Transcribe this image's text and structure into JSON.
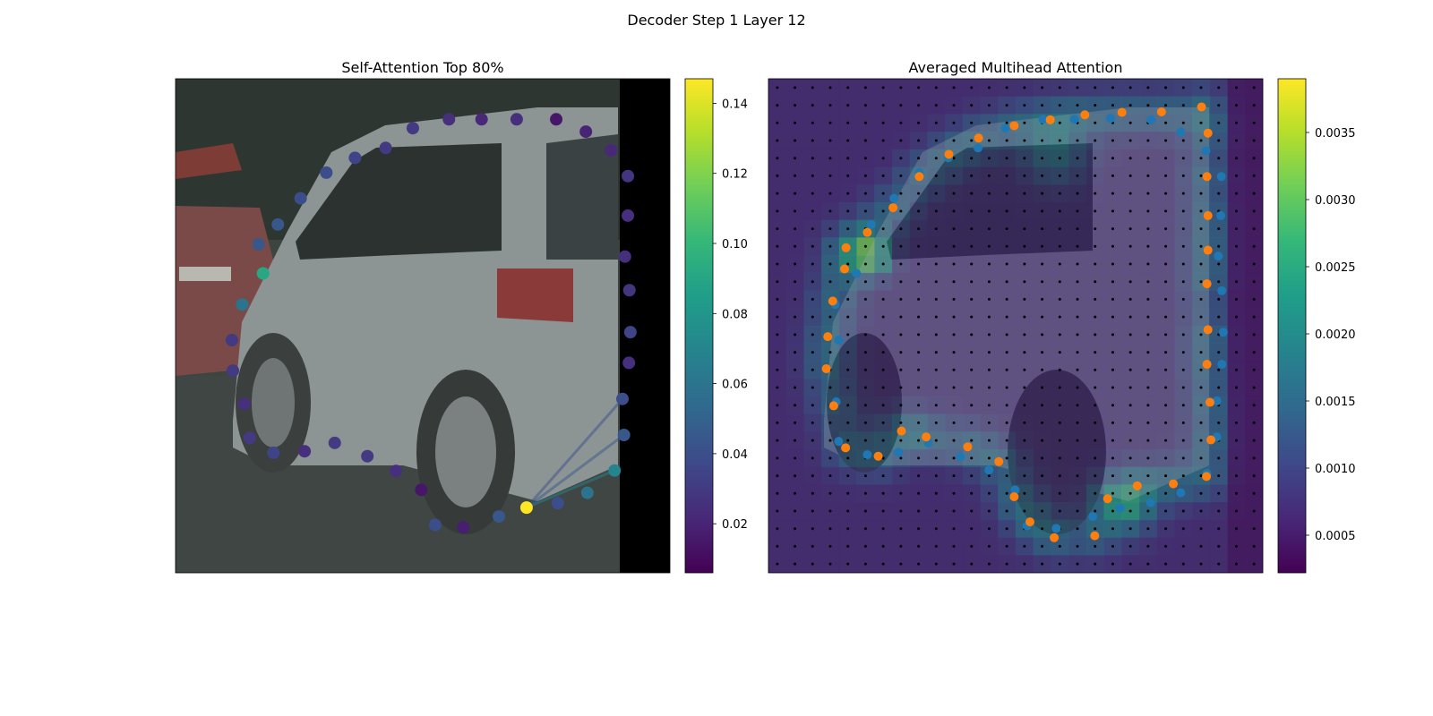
{
  "figure": {
    "title": "Decoder Step 1 Layer 12"
  },
  "colors": {
    "viridis": [
      "#440154",
      "#482878",
      "#3e4989",
      "#31688e",
      "#26828e",
      "#1f9e89",
      "#35b779",
      "#6ece58",
      "#b5de2b",
      "#fde725"
    ],
    "orange": "#ff7f0e",
    "blue": "#1f77b4"
  },
  "chart_data": [
    {
      "type": "scatter",
      "title": "Self-Attention Top 80%",
      "description_of_background": "photo of a silver minivan",
      "colorbar": {
        "range": [
          0.006,
          0.147
        ],
        "ticks": [
          "0.02",
          "0.04",
          "0.06",
          "0.08",
          "0.10",
          "0.12",
          "0.14"
        ],
        "tick_values": [
          0.02,
          0.04,
          0.06,
          0.08,
          0.1,
          0.12,
          0.14
        ]
      },
      "query_index": 0,
      "points": [
        {
          "x": 0.71,
          "y": 0.868,
          "v": 0.147
        },
        {
          "x": 0.773,
          "y": 0.859,
          "v": 0.04
        },
        {
          "x": 0.833,
          "y": 0.838,
          "v": 0.06
        },
        {
          "x": 0.888,
          "y": 0.793,
          "v": 0.07
        },
        {
          "x": 0.907,
          "y": 0.721,
          "v": 0.045
        },
        {
          "x": 0.904,
          "y": 0.648,
          "v": 0.04
        },
        {
          "x": 0.917,
          "y": 0.575,
          "v": 0.025
        },
        {
          "x": 0.92,
          "y": 0.513,
          "v": 0.035
        },
        {
          "x": 0.918,
          "y": 0.428,
          "v": 0.028
        },
        {
          "x": 0.909,
          "y": 0.36,
          "v": 0.025
        },
        {
          "x": 0.915,
          "y": 0.277,
          "v": 0.025
        },
        {
          "x": 0.915,
          "y": 0.197,
          "v": 0.028
        },
        {
          "x": 0.881,
          "y": 0.145,
          "v": 0.022
        },
        {
          "x": 0.83,
          "y": 0.107,
          "v": 0.02
        },
        {
          "x": 0.77,
          "y": 0.082,
          "v": 0.015
        },
        {
          "x": 0.69,
          "y": 0.082,
          "v": 0.025
        },
        {
          "x": 0.619,
          "y": 0.082,
          "v": 0.022
        },
        {
          "x": 0.553,
          "y": 0.082,
          "v": 0.025
        },
        {
          "x": 0.48,
          "y": 0.1,
          "v": 0.03
        },
        {
          "x": 0.425,
          "y": 0.14,
          "v": 0.03
        },
        {
          "x": 0.363,
          "y": 0.16,
          "v": 0.035
        },
        {
          "x": 0.305,
          "y": 0.19,
          "v": 0.04
        },
        {
          "x": 0.253,
          "y": 0.242,
          "v": 0.04
        },
        {
          "x": 0.207,
          "y": 0.295,
          "v": 0.045
        },
        {
          "x": 0.168,
          "y": 0.335,
          "v": 0.045
        },
        {
          "x": 0.177,
          "y": 0.394,
          "v": 0.09
        },
        {
          "x": 0.135,
          "y": 0.457,
          "v": 0.06
        },
        {
          "x": 0.114,
          "y": 0.529,
          "v": 0.03
        },
        {
          "x": 0.116,
          "y": 0.591,
          "v": 0.03
        },
        {
          "x": 0.139,
          "y": 0.658,
          "v": 0.025
        },
        {
          "x": 0.15,
          "y": 0.727,
          "v": 0.03
        },
        {
          "x": 0.198,
          "y": 0.757,
          "v": 0.035
        },
        {
          "x": 0.261,
          "y": 0.754,
          "v": 0.025
        },
        {
          "x": 0.322,
          "y": 0.737,
          "v": 0.03
        },
        {
          "x": 0.388,
          "y": 0.764,
          "v": 0.03
        },
        {
          "x": 0.446,
          "y": 0.794,
          "v": 0.025
        },
        {
          "x": 0.497,
          "y": 0.832,
          "v": 0.015
        },
        {
          "x": 0.525,
          "y": 0.903,
          "v": 0.04
        },
        {
          "x": 0.582,
          "y": 0.908,
          "v": 0.018
        },
        {
          "x": 0.654,
          "y": 0.886,
          "v": 0.045
        }
      ],
      "attention_lines_to": [
        4,
        5,
        3
      ]
    },
    {
      "type": "heatmap",
      "title": "Averaged Multihead Attention",
      "description_of_background": "photo of a silver minivan",
      "colorbar": {
        "range": [
          0.00022,
          0.0039
        ],
        "ticks": [
          "0.0005",
          "0.0010",
          "0.0015",
          "0.0020",
          "0.0025",
          "0.0030",
          "0.0035"
        ],
        "tick_values": [
          0.0005,
          0.001,
          0.0015,
          0.002,
          0.0025,
          0.003,
          0.0035
        ]
      },
      "grid": {
        "cols": 28,
        "rows": 28
      },
      "series": [
        {
          "color": "orange",
          "points": [
            {
              "x": 0.12,
              "y": 0.522
            },
            {
              "x": 0.117,
              "y": 0.587
            },
            {
              "x": 0.132,
              "y": 0.662
            },
            {
              "x": 0.156,
              "y": 0.747
            },
            {
              "x": 0.222,
              "y": 0.764
            },
            {
              "x": 0.269,
              "y": 0.713
            },
            {
              "x": 0.319,
              "y": 0.725
            },
            {
              "x": 0.403,
              "y": 0.745
            },
            {
              "x": 0.466,
              "y": 0.775
            },
            {
              "x": 0.497,
              "y": 0.846
            },
            {
              "x": 0.529,
              "y": 0.897
            },
            {
              "x": 0.578,
              "y": 0.929
            },
            {
              "x": 0.66,
              "y": 0.925
            },
            {
              "x": 0.686,
              "y": 0.85
            },
            {
              "x": 0.746,
              "y": 0.824
            },
            {
              "x": 0.819,
              "y": 0.82
            },
            {
              "x": 0.886,
              "y": 0.805
            },
            {
              "x": 0.895,
              "y": 0.731
            },
            {
              "x": 0.893,
              "y": 0.655
            },
            {
              "x": 0.887,
              "y": 0.578
            },
            {
              "x": 0.889,
              "y": 0.508
            },
            {
              "x": 0.887,
              "y": 0.415
            },
            {
              "x": 0.889,
              "y": 0.347
            },
            {
              "x": 0.889,
              "y": 0.277
            },
            {
              "x": 0.887,
              "y": 0.198
            },
            {
              "x": 0.889,
              "y": 0.11
            },
            {
              "x": 0.876,
              "y": 0.057
            },
            {
              "x": 0.795,
              "y": 0.067
            },
            {
              "x": 0.715,
              "y": 0.068
            },
            {
              "x": 0.64,
              "y": 0.073
            },
            {
              "x": 0.57,
              "y": 0.083
            },
            {
              "x": 0.497,
              "y": 0.095
            },
            {
              "x": 0.425,
              "y": 0.12
            },
            {
              "x": 0.365,
              "y": 0.153
            },
            {
              "x": 0.305,
              "y": 0.198
            },
            {
              "x": 0.252,
              "y": 0.261
            },
            {
              "x": 0.2,
              "y": 0.311
            },
            {
              "x": 0.157,
              "y": 0.342
            },
            {
              "x": 0.154,
              "y": 0.385
            },
            {
              "x": 0.13,
              "y": 0.45
            }
          ]
        },
        {
          "color": "blue",
          "points": [
            {
              "x": 0.137,
              "y": 0.654
            },
            {
              "x": 0.142,
              "y": 0.734
            },
            {
              "x": 0.2,
              "y": 0.761
            },
            {
              "x": 0.263,
              "y": 0.756
            },
            {
              "x": 0.323,
              "y": 0.737
            },
            {
              "x": 0.388,
              "y": 0.765
            },
            {
              "x": 0.446,
              "y": 0.792
            },
            {
              "x": 0.499,
              "y": 0.832
            },
            {
              "x": 0.523,
              "y": 0.905
            },
            {
              "x": 0.582,
              "y": 0.91
            },
            {
              "x": 0.656,
              "y": 0.886
            },
            {
              "x": 0.711,
              "y": 0.869
            },
            {
              "x": 0.773,
              "y": 0.858
            },
            {
              "x": 0.834,
              "y": 0.838
            },
            {
              "x": 0.887,
              "y": 0.799
            },
            {
              "x": 0.907,
              "y": 0.725
            },
            {
              "x": 0.907,
              "y": 0.652
            },
            {
              "x": 0.917,
              "y": 0.578
            },
            {
              "x": 0.92,
              "y": 0.513
            },
            {
              "x": 0.917,
              "y": 0.429
            },
            {
              "x": 0.91,
              "y": 0.359
            },
            {
              "x": 0.915,
              "y": 0.277
            },
            {
              "x": 0.916,
              "y": 0.198
            },
            {
              "x": 0.885,
              "y": 0.146
            },
            {
              "x": 0.834,
              "y": 0.108
            },
            {
              "x": 0.774,
              "y": 0.083
            },
            {
              "x": 0.692,
              "y": 0.08
            },
            {
              "x": 0.619,
              "y": 0.082
            },
            {
              "x": 0.555,
              "y": 0.082
            },
            {
              "x": 0.479,
              "y": 0.1
            },
            {
              "x": 0.424,
              "y": 0.14
            },
            {
              "x": 0.364,
              "y": 0.16
            },
            {
              "x": 0.305,
              "y": 0.19
            },
            {
              "x": 0.254,
              "y": 0.242
            },
            {
              "x": 0.208,
              "y": 0.295
            },
            {
              "x": 0.178,
              "y": 0.394
            },
            {
              "x": 0.135,
              "y": 0.457
            },
            {
              "x": 0.142,
              "y": 0.529
            }
          ]
        }
      ]
    }
  ]
}
